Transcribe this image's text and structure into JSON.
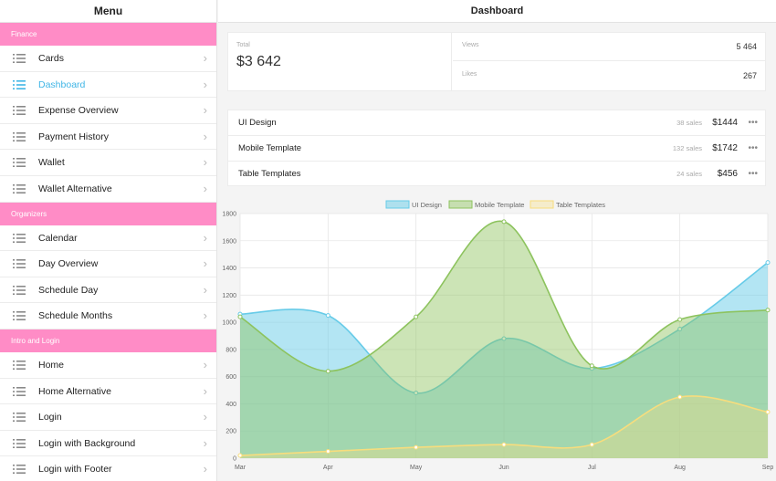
{
  "sidebar": {
    "title": "Menu",
    "sections": [
      {
        "title": "Finance",
        "items": [
          {
            "label": "Cards",
            "active": false
          },
          {
            "label": "Dashboard",
            "active": true
          },
          {
            "label": "Expense Overview",
            "active": false
          },
          {
            "label": "Payment History",
            "active": false
          },
          {
            "label": "Wallet",
            "active": false
          },
          {
            "label": "Wallet Alternative",
            "active": false
          }
        ]
      },
      {
        "title": "Organizers",
        "items": [
          {
            "label": "Calendar",
            "active": false
          },
          {
            "label": "Day Overview",
            "active": false
          },
          {
            "label": "Schedule Day",
            "active": false
          },
          {
            "label": "Schedule Months",
            "active": false
          }
        ]
      },
      {
        "title": "Intro and Login",
        "items": [
          {
            "label": "Home",
            "active": false
          },
          {
            "label": "Home Alternative",
            "active": false
          },
          {
            "label": "Login",
            "active": false
          },
          {
            "label": "Login with Background",
            "active": false
          },
          {
            "label": "Login with Footer",
            "active": false
          }
        ]
      }
    ],
    "icons": {
      "item": "list-icon",
      "chevron": "chevron-right-icon"
    },
    "colors": {
      "section_bg": "#ff8cc6",
      "active_text": "#41b6e6"
    }
  },
  "main": {
    "title": "Dashboard",
    "stats": {
      "total_label": "Total",
      "total_value": "$3 642",
      "views_label": "Views",
      "views_value": "5 464",
      "likes_label": "Likes",
      "likes_value": "267"
    },
    "products": [
      {
        "name": "UI Design",
        "sales": "38 sales",
        "price": "$1444"
      },
      {
        "name": "Mobile Template",
        "sales": "132 sales",
        "price": "$1742"
      },
      {
        "name": "Table Templates",
        "sales": "24 sales",
        "price": "$456"
      }
    ],
    "more_glyph": "•••"
  },
  "chart_data": {
    "type": "area",
    "categories": [
      "Mar",
      "Apr",
      "May",
      "Jun",
      "Jul",
      "Aug",
      "Sep"
    ],
    "series": [
      {
        "name": "UI Design",
        "values": [
          1060,
          1050,
          480,
          880,
          660,
          950,
          1440
        ],
        "color": "#67cbe8",
        "fill": "rgba(103,203,232,0.5)"
      },
      {
        "name": "Mobile Template",
        "values": [
          1040,
          640,
          1040,
          1740,
          680,
          1020,
          1090
        ],
        "color": "#8dc35e",
        "fill": "rgba(141,195,94,0.45)"
      },
      {
        "name": "Table Templates",
        "values": [
          20,
          50,
          80,
          100,
          100,
          450,
          340
        ],
        "color": "#f7dd7d",
        "fill": "rgba(247,221,125,0.35)"
      }
    ],
    "yticks": [
      0,
      200,
      400,
      600,
      800,
      1000,
      1200,
      1400,
      1600,
      1800
    ],
    "ylim": [
      0,
      1800
    ],
    "legend": "top",
    "grid": true,
    "title": "",
    "xlabel": "",
    "ylabel": ""
  }
}
